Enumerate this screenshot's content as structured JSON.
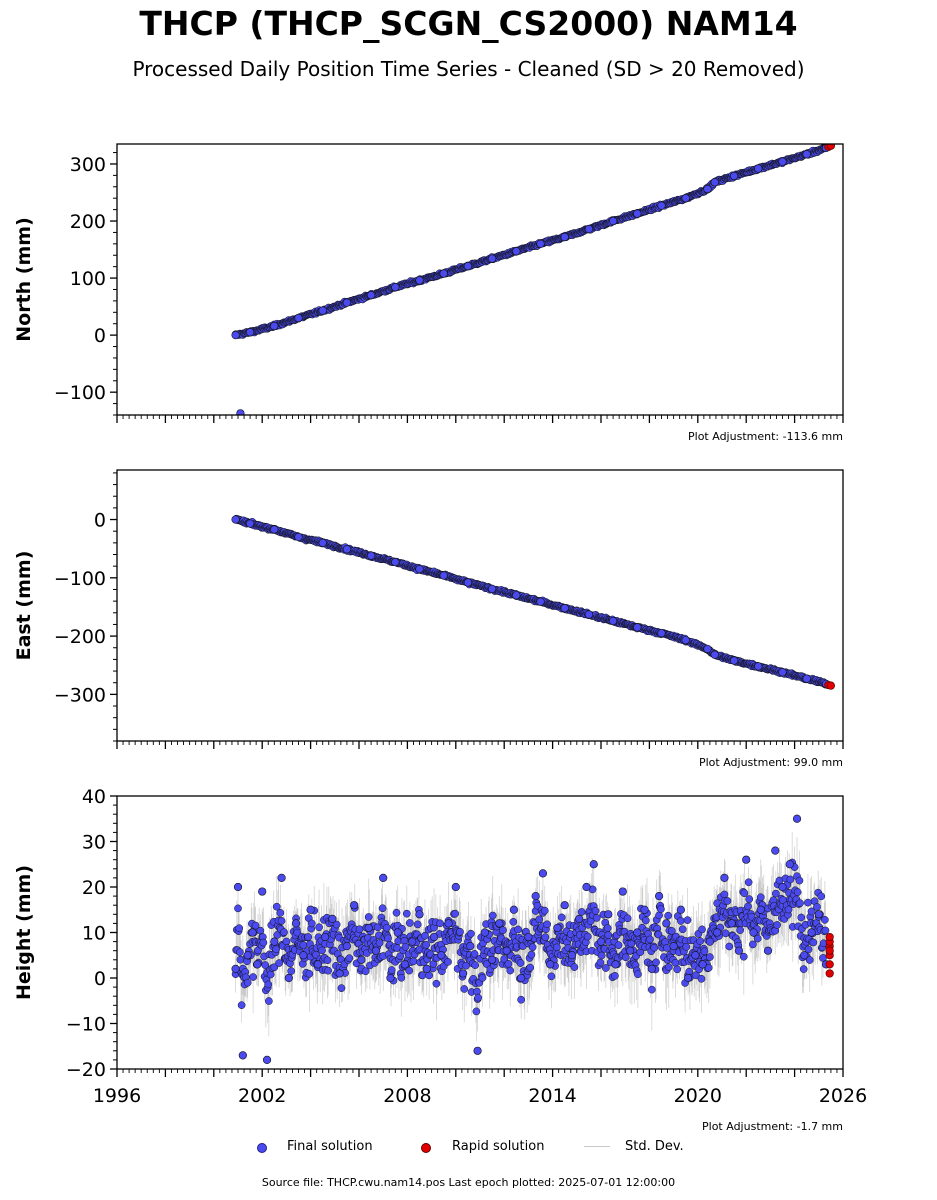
{
  "title": "THCP (THCP_SCGN_CS2000) NAM14",
  "subtitle": "Processed Daily Position Time Series - Cleaned (SD > 20 Removed)",
  "footer": "Source file: THCP.cwu.nam14.pos  Last epoch plotted: 2025-07-01 12:00:00",
  "legend": {
    "final": "Final solution",
    "rapid": "Rapid solution",
    "std": "Std. Dev."
  },
  "colors": {
    "final": "#4a4aef",
    "rapid": "#e00000",
    "std": "#9e9e9e",
    "edge": "#000000"
  },
  "chart_data": [
    {
      "type": "scatter",
      "panel": "north",
      "ylabel": "North (mm)",
      "adjustment": "Plot Adjustment: -113.6 mm",
      "xlim": [
        1996,
        2026
      ],
      "ylim": [
        -140,
        335
      ],
      "yticks": [
        -100,
        0,
        100,
        200,
        300
      ],
      "minor_y_step": 20,
      "series": [
        {
          "name": "Final solution",
          "x": [
            2000.9,
            2001.5,
            2002.5,
            2003.5,
            2004.5,
            2005.5,
            2006.5,
            2007.5,
            2008.5,
            2009.5,
            2010.5,
            2011.5,
            2012.5,
            2013.5,
            2014.5,
            2015.5,
            2016.5,
            2017.5,
            2018.5,
            2019.5,
            2020.4,
            2020.7,
            2021.5,
            2022.5,
            2023.5,
            2024.5,
            2025.3
          ],
          "y": [
            0,
            5,
            16,
            30,
            43,
            57,
            70,
            84,
            96,
            108,
            121,
            134,
            147,
            160,
            172,
            186,
            200,
            213,
            227,
            240,
            256,
            268,
            279,
            292,
            304,
            317,
            328
          ]
        },
        {
          "name": "Rapid solution",
          "x": [
            2025.4,
            2025.5
          ],
          "y": [
            330,
            332
          ]
        }
      ],
      "outliers": [
        {
          "x": 2001.1,
          "y": -137
        }
      ]
    },
    {
      "type": "scatter",
      "panel": "east",
      "ylabel": "East (mm)",
      "adjustment": "Plot Adjustment: 99.0 mm",
      "xlim": [
        1996,
        2026
      ],
      "ylim": [
        -380,
        85
      ],
      "yticks": [
        -300,
        -200,
        -100,
        0
      ],
      "minor_y_step": 20,
      "series": [
        {
          "name": "Final solution",
          "x": [
            2000.9,
            2001.5,
            2002.5,
            2003.5,
            2004.5,
            2005.5,
            2006.5,
            2007.5,
            2008.5,
            2009.5,
            2010.5,
            2011.5,
            2012.5,
            2013.5,
            2014.5,
            2015.5,
            2016.5,
            2017.5,
            2018.5,
            2019.5,
            2020.4,
            2020.7,
            2021.5,
            2022.5,
            2023.5,
            2024.5,
            2025.3
          ],
          "y": [
            0,
            -7,
            -17,
            -30,
            -40,
            -51,
            -62,
            -73,
            -85,
            -96,
            -108,
            -119,
            -130,
            -141,
            -152,
            -163,
            -174,
            -185,
            -195,
            -207,
            -222,
            -232,
            -242,
            -252,
            -262,
            -273,
            -282
          ]
        },
        {
          "name": "Rapid solution",
          "x": [
            2025.4,
            2025.5
          ],
          "y": [
            -284,
            -285
          ]
        }
      ]
    },
    {
      "type": "scatter",
      "panel": "height",
      "ylabel": "Height (mm)",
      "adjustment": "Plot Adjustment: -1.7 mm",
      "xlim": [
        1996,
        2026
      ],
      "ylim": [
        -20,
        40
      ],
      "yticks": [
        -20,
        -10,
        0,
        10,
        20,
        30,
        40
      ],
      "minor_y_step": 2,
      "xticks": [
        1996,
        2002,
        2008,
        2014,
        2020,
        2026
      ],
      "series": [
        {
          "name": "Final solution",
          "x": [
            2000.9,
            2001.0,
            2001.2,
            2001.4,
            2001.6,
            2001.8,
            2002.0,
            2002.2,
            2002.5,
            2002.8,
            2003.1,
            2003.4,
            2003.7,
            2004.0,
            2004.3,
            2004.6,
            2004.9,
            2005.2,
            2005.5,
            2005.8,
            2006.1,
            2006.4,
            2006.7,
            2007.0,
            2007.3,
            2007.6,
            2007.9,
            2008.2,
            2008.5,
            2008.8,
            2009.1,
            2009.4,
            2009.7,
            2010.0,
            2010.3,
            2010.6,
            2010.9,
            2011.2,
            2011.5,
            2011.8,
            2012.1,
            2012.4,
            2012.7,
            2013.0,
            2013.3,
            2013.6,
            2013.9,
            2014.2,
            2014.5,
            2014.8,
            2015.1,
            2015.4,
            2015.7,
            2016.0,
            2016.3,
            2016.6,
            2016.9,
            2017.2,
            2017.5,
            2017.8,
            2018.1,
            2018.4,
            2018.7,
            2019.0,
            2019.3,
            2019.6,
            2019.9,
            2020.2,
            2020.5,
            2020.8,
            2021.1,
            2021.4,
            2021.7,
            2022.0,
            2022.3,
            2022.6,
            2022.9,
            2023.2,
            2023.5,
            2023.8,
            2024.1,
            2024.4,
            2024.7,
            2025.0,
            2025.3
          ],
          "y": [
            2,
            20,
            -17,
            5,
            10,
            3,
            19,
            -18,
            8,
            22,
            0,
            12,
            5,
            15,
            3,
            9,
            13,
            1,
            7,
            16,
            4,
            11,
            6,
            22,
            0,
            10,
            3,
            8,
            14,
            2,
            9,
            5,
            12,
            20,
            1,
            7,
            -16,
            10,
            4,
            12,
            6,
            15,
            0,
            9,
            18,
            23,
            3,
            11,
            16,
            5,
            13,
            20,
            25,
            8,
            14,
            3,
            19,
            6,
            10,
            15,
            2,
            18,
            12,
            7,
            15,
            0,
            5,
            3,
            8,
            10,
            22,
            12,
            6,
            26,
            10,
            15,
            6,
            28,
            20,
            25,
            35,
            5,
            10,
            14,
            3
          ]
        },
        {
          "name": "Rapid solution",
          "x": [
            2025.45,
            2025.45,
            2025.45,
            2025.45,
            2025.45,
            2025.45,
            2025.45
          ],
          "y": [
            1,
            3,
            5,
            7,
            8,
            9,
            6
          ]
        }
      ]
    }
  ]
}
